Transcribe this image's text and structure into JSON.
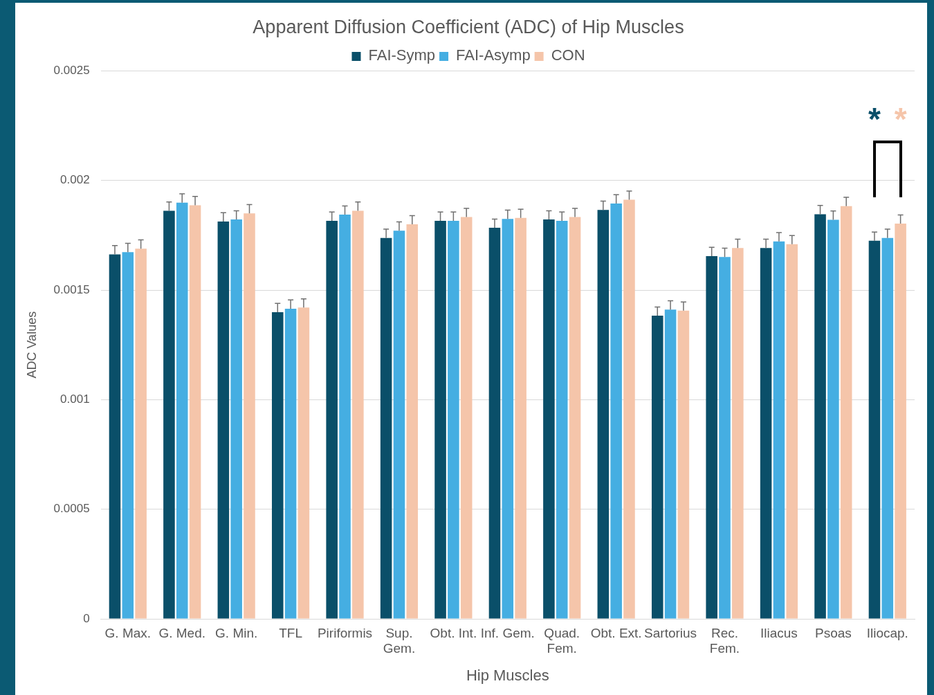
{
  "chart_data": {
    "type": "bar",
    "title": "Apparent Diffusion Coefficient (ADC) of Hip Muscles",
    "xlabel": "Hip Muscles",
    "ylabel": "ADC Values",
    "categories": [
      "G. Max.",
      "G. Med.",
      "G. Min.",
      "TFL",
      "Piriformis",
      "Sup.\nGem.",
      "Obt. Int.",
      "Inf. Gem.",
      "Quad.\nFem.",
      "Obt. Ext.",
      "Sartorius",
      "Rec.\nFem.",
      "Iliacus",
      "Psoas",
      "Iliocap."
    ],
    "series": [
      {
        "name": "FAI-Symp",
        "color": "#0a4f69",
        "values": [
          0.001663,
          0.001862,
          0.001813,
          0.001399,
          0.001816,
          0.001738,
          0.001816,
          0.001784,
          0.001822,
          0.001866,
          0.001383,
          0.001655,
          0.001692,
          0.001846,
          0.001725
        ],
        "errors": [
          4e-05,
          4e-05,
          4e-05,
          4e-05,
          4e-05,
          4e-05,
          4e-05,
          4e-05,
          4e-05,
          4e-05,
          4e-05,
          4e-05,
          4e-05,
          4e-05,
          4e-05
        ]
      },
      {
        "name": "FAI-Asymp",
        "color": "#45aee2",
        "values": [
          0.001673,
          0.001899,
          0.001822,
          0.001415,
          0.001844,
          0.001771,
          0.001816,
          0.001825,
          0.001816,
          0.001895,
          0.001411,
          0.001651,
          0.001722,
          0.001821,
          0.001738
        ],
        "errors": [
          4e-05,
          4e-05,
          4e-05,
          4e-05,
          4e-05,
          4e-05,
          4e-05,
          4e-05,
          4e-05,
          4e-05,
          4e-05,
          4e-05,
          4e-05,
          4e-05,
          4e-05
        ]
      },
      {
        "name": "CON",
        "color": "#f5c5aa",
        "values": [
          0.001689,
          0.001887,
          0.00185,
          0.00142,
          0.001862,
          0.0018,
          0.001833,
          0.001829,
          0.001833,
          0.001912,
          0.001406,
          0.001692,
          0.001709,
          0.001883,
          0.001803
        ],
        "errors": [
          4e-05,
          4e-05,
          4e-05,
          4e-05,
          4e-05,
          4e-05,
          4e-05,
          4e-05,
          4e-05,
          4e-05,
          4e-05,
          4e-05,
          4e-05,
          4e-05,
          4e-05
        ]
      }
    ],
    "ylim": [
      0,
      0.0025
    ],
    "yticks": [
      0,
      0.0005,
      0.001,
      0.0015,
      0.002,
      0.0025
    ],
    "grid": "y",
    "legend": "top",
    "annotations": [
      "*",
      "*"
    ]
  }
}
